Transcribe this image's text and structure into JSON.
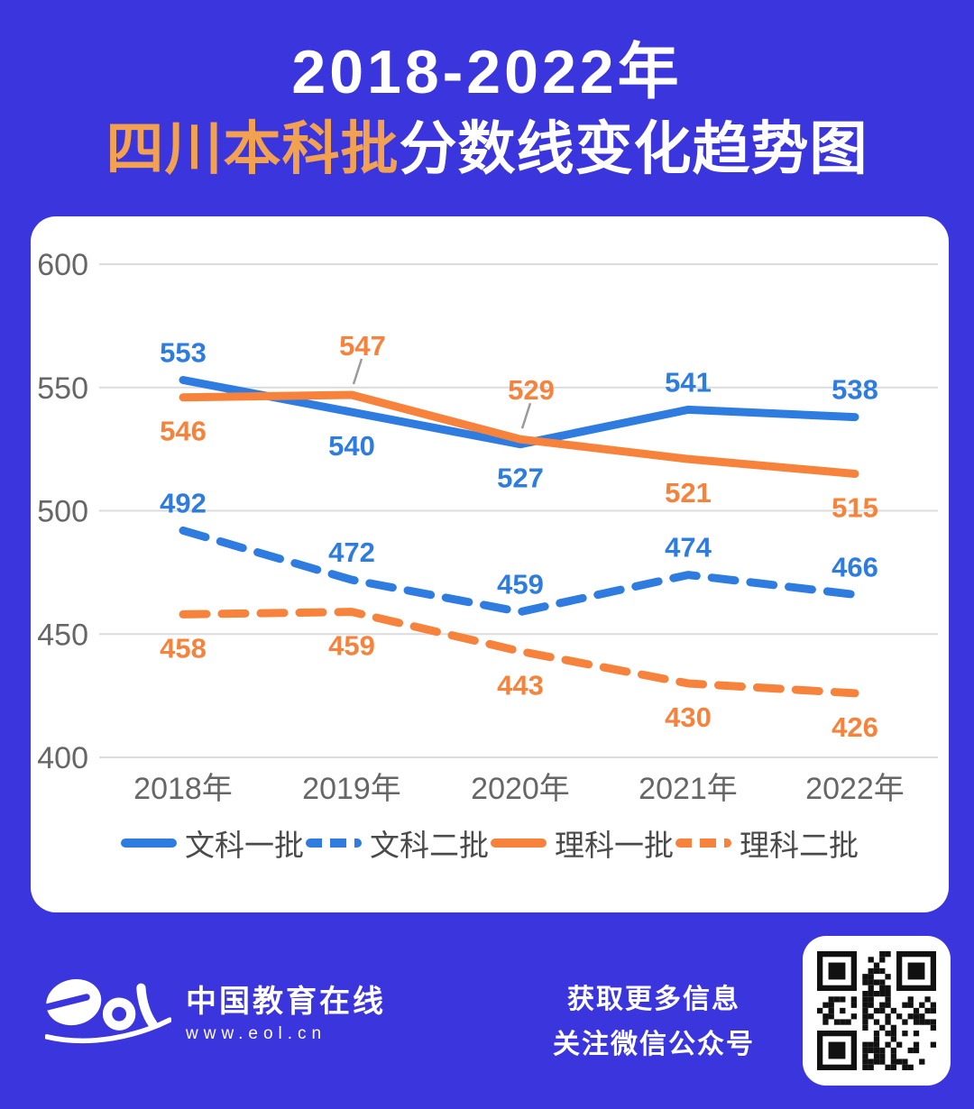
{
  "title": {
    "line1": "2018-2022年",
    "line2_highlight": "四川本科批",
    "line2_rest": "分数线变化趋势图"
  },
  "colors": {
    "background": "#3B35DE",
    "card": "#FFFFFF",
    "blue": "#2E7CE0",
    "orange": "#F7823B",
    "title_highlight": "#F2A150",
    "grid": "#DCDCDC",
    "axis_text": "#666666",
    "legend_text": "#4A4A4A",
    "leader": "#9B9B9B"
  },
  "chart_data": {
    "type": "line",
    "title": "2018-2022年四川本科批分数线变化趋势图",
    "x": [
      "2018年",
      "2019年",
      "2020年",
      "2021年",
      "2022年"
    ],
    "series": [
      {
        "name": "文科一批",
        "color": "blue",
        "style": "solid",
        "values": [
          553,
          540,
          527,
          541,
          538
        ],
        "label_pos": [
          "above",
          "below",
          "below",
          "above",
          "above"
        ]
      },
      {
        "name": "文科二批",
        "color": "blue",
        "style": "dashed",
        "values": [
          492,
          472,
          459,
          474,
          466
        ],
        "label_pos": [
          "above",
          "above",
          "above",
          "above",
          "above"
        ]
      },
      {
        "name": "理科一批",
        "color": "orange",
        "style": "solid",
        "values": [
          546,
          547,
          529,
          521,
          515
        ],
        "label_pos": [
          "below",
          "above-leader",
          "above-leader",
          "below",
          "below"
        ]
      },
      {
        "name": "理科二批",
        "color": "orange",
        "style": "dashed",
        "values": [
          458,
          459,
          443,
          430,
          426
        ],
        "label_pos": [
          "below",
          "below",
          "below",
          "below",
          "below"
        ]
      }
    ],
    "ylim": [
      400,
      620
    ],
    "yticks": [
      400,
      450,
      500,
      550,
      600
    ],
    "grid": true,
    "legend_position": "bottom"
  },
  "footer": {
    "brand_name": "中国教育在线",
    "brand_url": "www.eol.cn",
    "info_line1": "获取更多信息",
    "info_line2": "关注微信公众号"
  }
}
